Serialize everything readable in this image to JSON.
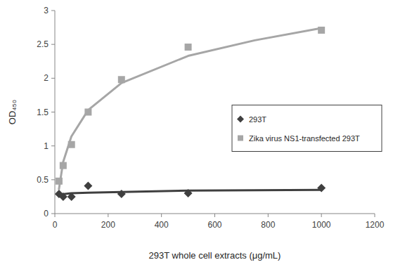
{
  "chart_data": {
    "type": "scatter",
    "x_label": "293T whole cell extracts (μg/mL)",
    "y_label": "OD₄₅₀",
    "x": [
      15.6,
      31.25,
      62.5,
      125,
      250,
      500,
      1000
    ],
    "series": [
      {
        "name": "293T",
        "color": "#3f3f3f",
        "marker": "diamond",
        "values": [
          0.29,
          0.25,
          0.25,
          0.41,
          0.29,
          0.3,
          0.38
        ],
        "trendline": {
          "x": [
            15,
            62,
            125,
            250,
            500,
            1000
          ],
          "values": [
            0.28,
            0.3,
            0.31,
            0.32,
            0.34,
            0.35
          ]
        }
      },
      {
        "name": "Zika virus NS1-transfected 293T",
        "color": "#a6a6a6",
        "marker": "square",
        "values": [
          0.48,
          0.71,
          1.02,
          1.5,
          1.98,
          2.46,
          2.71
        ],
        "trendline": {
          "x": [
            15,
            31,
            62,
            125,
            250,
            500,
            750,
            1000
          ],
          "values": [
            0.35,
            0.76,
            1.14,
            1.53,
            1.93,
            2.33,
            2.56,
            2.74
          ]
        }
      }
    ],
    "xlim": [
      0,
      1200
    ],
    "xticks": [
      0,
      200,
      400,
      600,
      800,
      1000,
      1200
    ],
    "ylim": [
      0,
      3
    ],
    "yticks": [
      0,
      0.5,
      1,
      1.5,
      2,
      2.5,
      3
    ],
    "grid": false,
    "legend": "right"
  }
}
